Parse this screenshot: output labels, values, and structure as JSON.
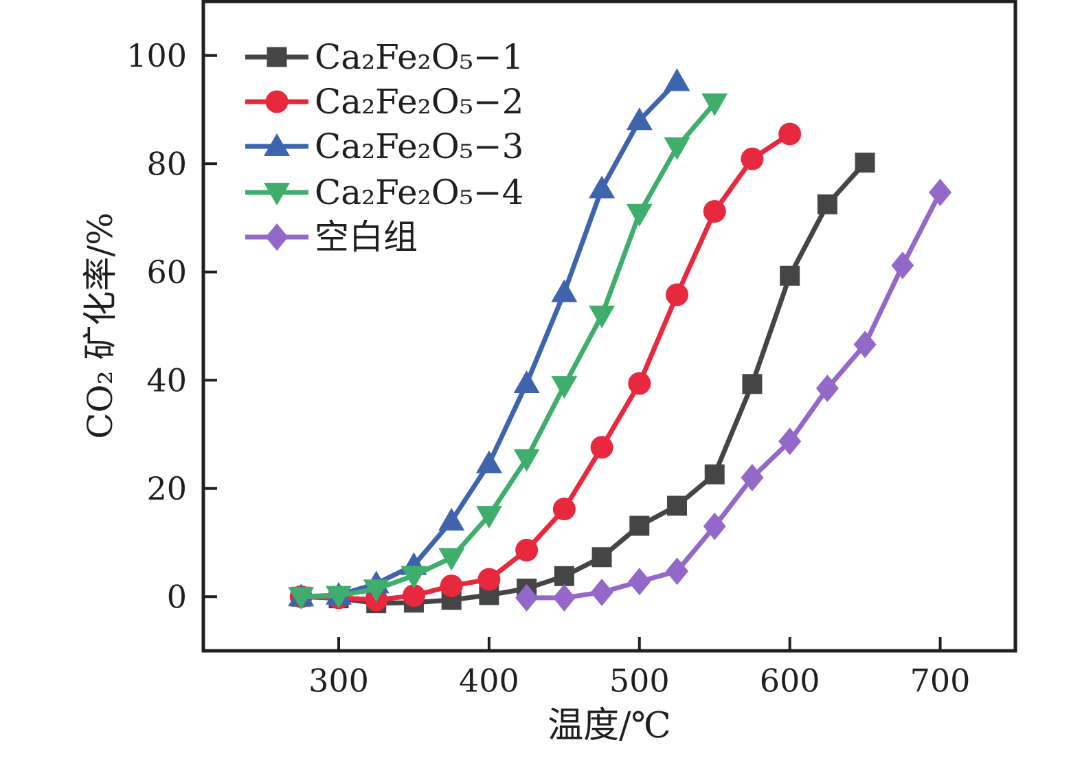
{
  "figure": {
    "background": "#ffffff",
    "frame_color": "#231f20",
    "text_color": "#1f1f1f"
  },
  "chart_data": {
    "type": "line",
    "title": "",
    "xlabel": "温度/℃",
    "ylabel": "CO₂ 矿化率/%",
    "xlim": [
      210,
      750
    ],
    "ylim": [
      -10,
      110
    ],
    "xticks": [
      300,
      400,
      500,
      600,
      700
    ],
    "yticks": [
      0,
      20,
      40,
      60,
      80,
      100
    ],
    "grid": false,
    "legend_position": "upper-left-inside",
    "series": [
      {
        "name": "Ca₂Fe₂O₅−1",
        "marker": "square",
        "color": "#454545",
        "x": [
          275,
          300,
          325,
          350,
          375,
          400,
          425,
          450,
          475,
          500,
          525,
          550,
          575,
          600,
          625,
          650
        ],
        "values": [
          0,
          -0.3,
          -1.2,
          -1.1,
          -0.6,
          0.3,
          1.5,
          3.8,
          7.3,
          13.1,
          16.8,
          22.6,
          39.3,
          59.3,
          72.5,
          80.2
        ]
      },
      {
        "name": "Ca₂Fe₂O₅−2",
        "marker": "circle",
        "color": "#e8283c",
        "x": [
          275,
          300,
          325,
          350,
          375,
          400,
          425,
          450,
          475,
          500,
          525,
          550,
          575,
          600
        ],
        "values": [
          0,
          -0.2,
          -0.6,
          0.2,
          2.0,
          3.2,
          8.6,
          16.2,
          27.6,
          39.4,
          55.8,
          71.2,
          80.9,
          85.5
        ]
      },
      {
        "name": "Ca₂Fe₂O₅−3",
        "marker": "triangle-up",
        "color": "#3e64ae",
        "x": [
          275,
          300,
          325,
          350,
          375,
          400,
          425,
          450,
          475,
          500,
          525
        ],
        "values": [
          0,
          0.3,
          2.4,
          5.8,
          14.0,
          24.6,
          39.4,
          56.2,
          75.4,
          88.0,
          95.2
        ]
      },
      {
        "name": "Ca₂Fe₂O₅−4",
        "marker": "triangle-down",
        "color": "#3fae6d",
        "x": [
          275,
          300,
          325,
          350,
          375,
          400,
          425,
          450,
          475,
          500,
          525,
          550
        ],
        "values": [
          0,
          0.2,
          1.4,
          3.9,
          7.2,
          15.0,
          25.5,
          39.0,
          52.0,
          70.8,
          83.1,
          91.2
        ]
      },
      {
        "name": "空白组",
        "marker": "diamond",
        "color": "#9468c8",
        "x": [
          425,
          450,
          475,
          500,
          525,
          550,
          575,
          600,
          625,
          650,
          675,
          700
        ],
        "values": [
          -0.2,
          -0.2,
          0.8,
          2.8,
          4.7,
          13.0,
          22.0,
          28.7,
          38.5,
          46.6,
          61.2,
          74.7
        ]
      }
    ]
  }
}
